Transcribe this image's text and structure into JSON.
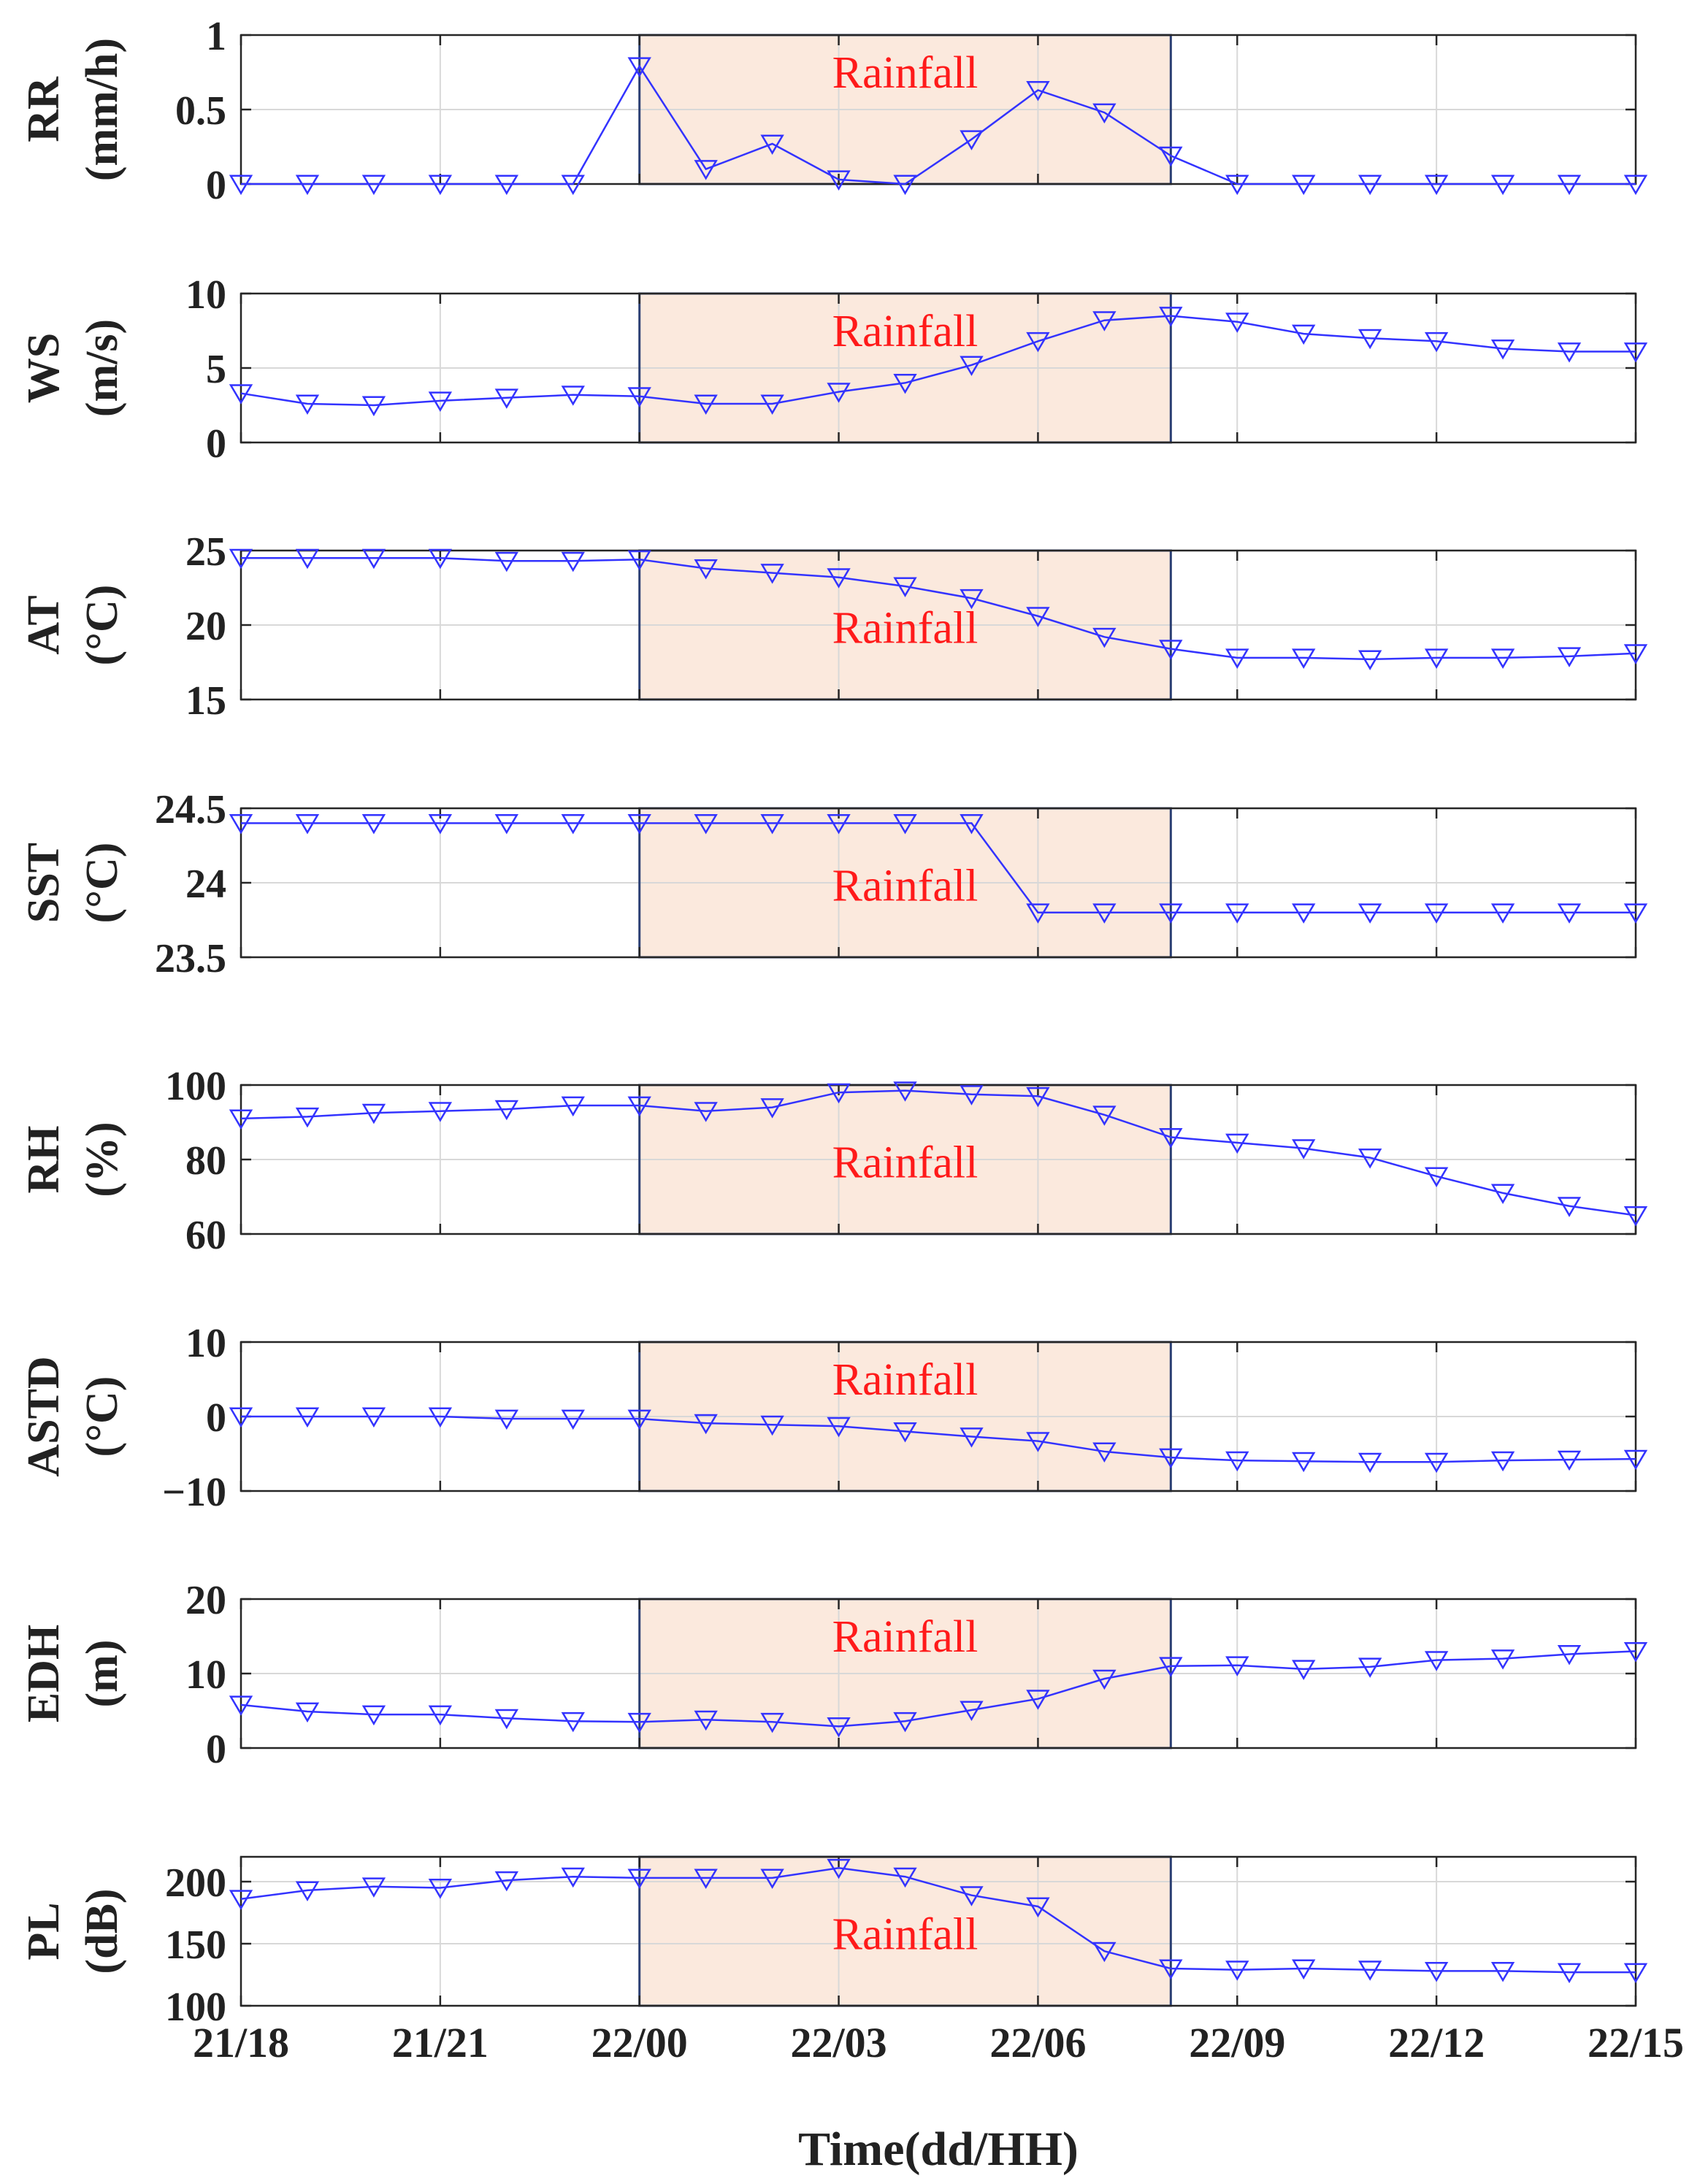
{
  "chart_data": {
    "type": "line",
    "xlabel": "Time(dd/HH)",
    "x": [
      "21/18",
      "21/19",
      "21/20",
      "21/21",
      "21/22",
      "21/23",
      "22/00",
      "22/01",
      "22/02",
      "22/03",
      "22/04",
      "22/05",
      "22/06",
      "22/07",
      "22/08",
      "22/09",
      "22/10",
      "22/11",
      "22/12",
      "22/13",
      "22/14",
      "22/15"
    ],
    "x_ticks": [
      "21/18",
      "21/21",
      "22/00",
      "22/03",
      "22/06",
      "22/09",
      "22/12",
      "22/15"
    ],
    "x_tick_index": [
      0,
      3,
      6,
      9,
      12,
      15,
      18,
      21
    ],
    "rainfall_window": {
      "start_index": 6,
      "end_index": 14,
      "label": "Rainfall",
      "fill": "#fbe9dd",
      "edge": "#2b3f73"
    },
    "line_color": "#3333ff",
    "marker": "triangle-down",
    "grid": true,
    "panels": [
      {
        "name": "rr",
        "ylabel": [
          "RR",
          "(mm/h)"
        ],
        "ylim": [
          0,
          1
        ],
        "yticks": [
          0,
          0.5,
          1
        ],
        "ytick_labels": [
          "0",
          "0.5",
          "1"
        ],
        "label_pos": "top",
        "values": [
          0,
          0,
          0,
          0,
          0,
          0,
          0.79,
          0.1,
          0.27,
          0.03,
          0,
          0.3,
          0.63,
          0.48,
          0.19,
          0,
          0,
          0,
          0,
          0,
          0,
          0
        ]
      },
      {
        "name": "ws",
        "ylabel": [
          "WS",
          "(m/s)"
        ],
        "ylim": [
          0,
          10
        ],
        "yticks": [
          0,
          5,
          10
        ],
        "ytick_labels": [
          "0",
          "5",
          "10"
        ],
        "label_pos": "top",
        "values": [
          3.3,
          2.6,
          2.5,
          2.8,
          3.0,
          3.2,
          3.1,
          2.6,
          2.6,
          3.4,
          4.0,
          5.2,
          6.8,
          8.2,
          8.5,
          8.1,
          7.3,
          7.0,
          6.8,
          6.3,
          6.1,
          6.1
        ]
      },
      {
        "name": "at",
        "ylabel": [
          "AT",
          "(°C)"
        ],
        "ylim": [
          15,
          25
        ],
        "yticks": [
          15,
          20,
          25
        ],
        "ytick_labels": [
          "15",
          "20",
          "25"
        ],
        "label_pos": "mid",
        "values": [
          24.5,
          24.5,
          24.5,
          24.5,
          24.3,
          24.3,
          24.4,
          23.8,
          23.5,
          23.2,
          22.6,
          21.8,
          20.6,
          19.2,
          18.4,
          17.8,
          17.8,
          17.7,
          17.8,
          17.8,
          17.9,
          18.1
        ]
      },
      {
        "name": "sst",
        "ylabel": [
          "SST",
          "(°C)"
        ],
        "ylim": [
          23.5,
          24.5
        ],
        "yticks": [
          23.5,
          24,
          24.5
        ],
        "ytick_labels": [
          "23.5",
          "24",
          "24.5"
        ],
        "label_pos": "mid",
        "values": [
          24.4,
          24.4,
          24.4,
          24.4,
          24.4,
          24.4,
          24.4,
          24.4,
          24.4,
          24.4,
          24.4,
          24.4,
          23.8,
          23.8,
          23.8,
          23.8,
          23.8,
          23.8,
          23.8,
          23.8,
          23.8,
          23.8
        ]
      },
      {
        "name": "rh",
        "ylabel": [
          "RH",
          "(%)"
        ],
        "ylim": [
          60,
          100
        ],
        "yticks": [
          60,
          80,
          100
        ],
        "ytick_labels": [
          "60",
          "80",
          "100"
        ],
        "label_pos": "mid",
        "values": [
          91,
          91.5,
          92.5,
          93,
          93.5,
          94.5,
          94.5,
          93,
          94,
          98,
          98.5,
          97.5,
          97,
          92,
          86,
          84.5,
          83,
          80.5,
          75.5,
          71,
          67.5,
          65
        ]
      },
      {
        "name": "astd",
        "ylabel": [
          "ASTD",
          "(°C)"
        ],
        "ylim": [
          -10,
          10
        ],
        "yticks": [
          -10,
          0,
          10
        ],
        "ytick_labels": [
          "−10",
          "0",
          "10"
        ],
        "label_pos": "top",
        "values": [
          0,
          0,
          0,
          0,
          -0.3,
          -0.3,
          -0.3,
          -0.9,
          -1.1,
          -1.3,
          -2.0,
          -2.7,
          -3.3,
          -4.7,
          -5.5,
          -5.9,
          -6.0,
          -6.1,
          -6.1,
          -5.9,
          -5.8,
          -5.7
        ]
      },
      {
        "name": "edh",
        "ylabel": [
          "EDH",
          "(m)"
        ],
        "ylim": [
          0,
          20
        ],
        "yticks": [
          0,
          10,
          20
        ],
        "ytick_labels": [
          "0",
          "10",
          "20"
        ],
        "label_pos": "top",
        "values": [
          5.8,
          4.9,
          4.5,
          4.5,
          4.0,
          3.6,
          3.5,
          3.8,
          3.5,
          2.9,
          3.6,
          5.1,
          6.6,
          9.3,
          11.0,
          11.1,
          10.6,
          10.9,
          11.8,
          12.0,
          12.6,
          13.0
        ]
      },
      {
        "name": "pl",
        "ylabel": [
          "PL",
          "(dB)"
        ],
        "ylim": [
          100,
          220
        ],
        "yticks": [
          100,
          150,
          200
        ],
        "ytick_labels": [
          "100",
          "150",
          "200"
        ],
        "label_pos": "mid",
        "values": [
          186,
          193,
          196,
          195,
          201,
          204,
          203,
          203,
          203,
          211,
          204,
          189,
          180,
          144,
          130,
          129,
          130,
          129,
          128,
          128,
          127,
          127
        ]
      }
    ]
  }
}
